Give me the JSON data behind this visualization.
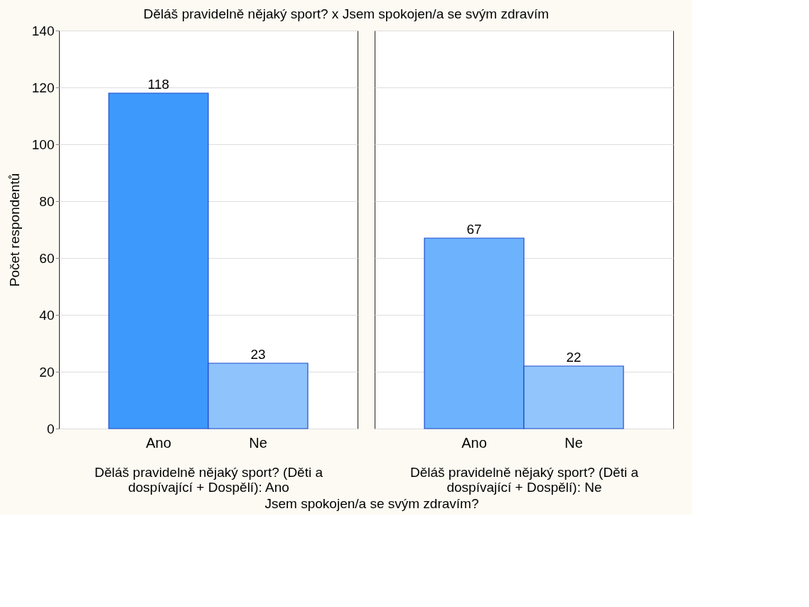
{
  "chart_data": [
    {
      "type": "bar",
      "title": "Děláš pravidelně nějaký sport? x Jsem spokojen/a se svým zdravím",
      "ylabel": "Počet respondentů",
      "xlabel": "Děláš pravidelně nějaký sport? (Děti a dospívající + Dospělí): Ano",
      "annotations": [
        "Jsem spokojen/a se svým zdravím?"
      ],
      "categories": [
        "Ano",
        "Ne"
      ],
      "values": [
        118,
        23
      ],
      "colors": [
        "#3d99fb",
        "#8fc3fc"
      ],
      "ylim": [
        0,
        140
      ],
      "yticks": [
        0,
        20,
        40,
        60,
        80,
        100,
        120,
        140
      ],
      "grid": "y",
      "data_labels": true
    },
    {
      "type": "bar",
      "xlabel": "Děláš pravidelně nějaký sport? (Děti a dospívající + Dospělí): Ne",
      "categories": [
        "Ano",
        "Ne"
      ],
      "values": [
        67,
        22
      ],
      "colors": [
        "#6cb2fc",
        "#92c5fc"
      ],
      "ylim": [
        0,
        140
      ],
      "yticks": [
        0,
        20,
        40,
        60,
        80,
        100,
        120,
        140
      ],
      "grid": "y",
      "data_labels": true,
      "tick_labels": "x"
    }
  ]
}
